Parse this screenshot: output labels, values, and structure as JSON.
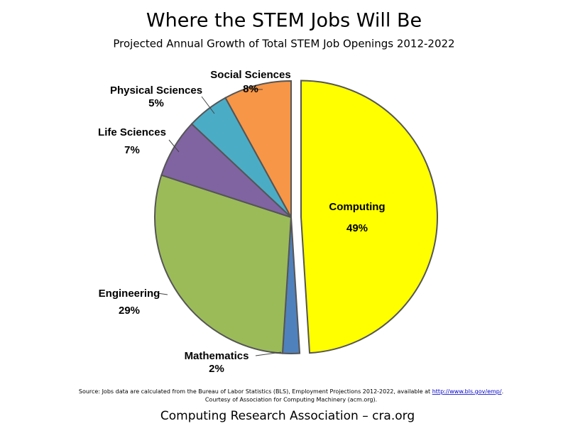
{
  "chart_data": {
    "type": "pie",
    "title": "Where the STEM Jobs Will Be",
    "subtitle": "Projected Annual Growth of Total STEM Job Openings 2012-2022",
    "categories": [
      "Computing",
      "Mathematics",
      "Engineering",
      "Life Sciences",
      "Physical Sciences",
      "Social Sciences"
    ],
    "values": [
      49,
      2,
      29,
      7,
      5,
      8
    ],
    "value_labels": [
      "49%",
      "2%",
      "29%",
      "7%",
      "5%",
      "8%"
    ],
    "colors": [
      "#ffff00",
      "#4f81bd",
      "#9bbb59",
      "#8064a2",
      "#4bacc6",
      "#f79646"
    ],
    "source": {
      "text": "Source: Jobs data are calculated from the Bureau of Labor Statistics (BLS), Employment Projections 2012-2022, available at ",
      "link": "http://www.bls.gov/emp/",
      "end": "."
    },
    "courtesy": "Courtesy of Association for Computing Machinery (acm.org).",
    "footer": "Computing Research Association – cra.org"
  }
}
